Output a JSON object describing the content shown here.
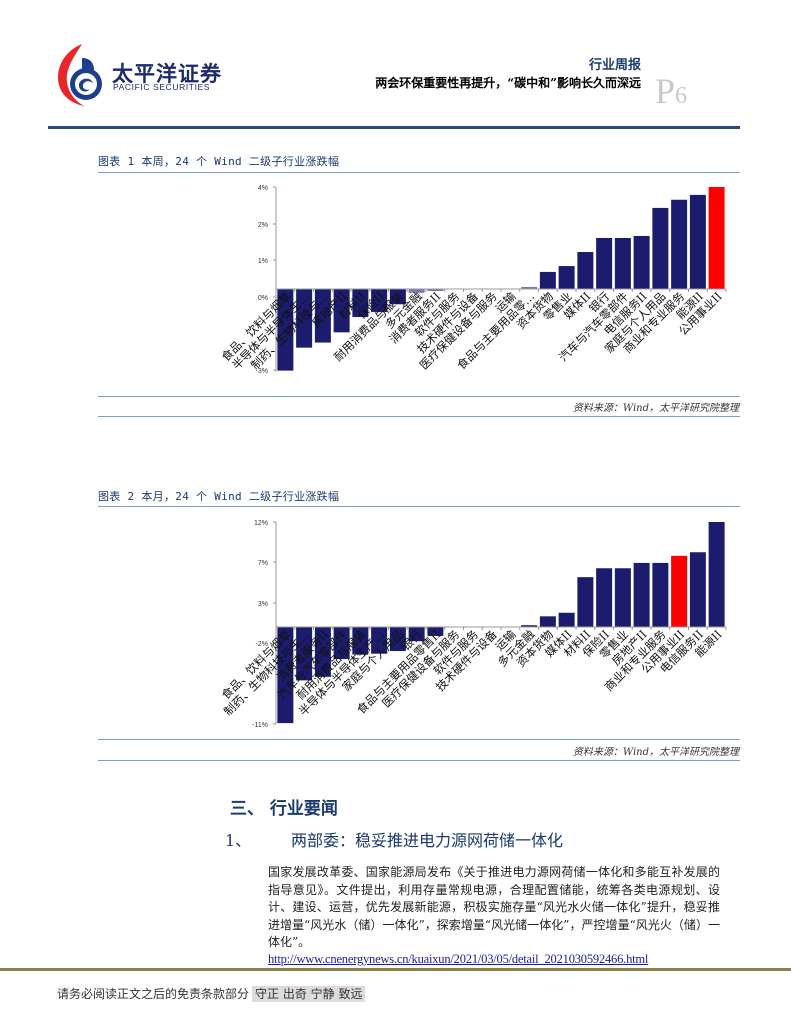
{
  "header": {
    "logo_cn": "太平洋证券",
    "logo_en": "PACIFIC SECURITIES",
    "report_type": "行业周报",
    "report_title": "两会环保重要性再提升，“碳中和”影响长久而深远",
    "page_prefix": "P",
    "page_number": "6"
  },
  "figures": [
    {
      "title": "图表 1 本周，24 个 Wind 二级子行业涨跌幅",
      "source": "资料来源：Wind，太平洋研究院整理"
    },
    {
      "title": "图表 2 本月，24 个 Wind 二级子行业涨跌幅",
      "source": "资料来源：Wind，太平洋研究院整理"
    }
  ],
  "chart_data": [
    {
      "type": "bar",
      "title": "图表 1 本周，24 个 Wind 二级子行业涨跌幅",
      "xlabel": "",
      "ylabel": "",
      "ytick_labels": [
        "4%",
        "2%",
        "1%",
        "0%",
        "-3%"
      ],
      "ylim": [
        -3.3,
        4.0
      ],
      "grid": false,
      "highlight_color": "#ff0000",
      "bar_color": "#1c1c6e",
      "highlight_index": 23,
      "categories": [
        "食品、饮料与烟草",
        "半导体与半导体生…",
        "制药、生物科技与…",
        "房地产II",
        "材料II",
        "保险II",
        "耐用消费品与服装",
        "多元金融",
        "消费者服务II",
        "软件与服务",
        "技术硬件与设备",
        "医疗保健设备与服务",
        "运输",
        "食品与主要用品零…",
        "资本货物",
        "零售业",
        "媒体II",
        "银行",
        "汽车与汽车零部件",
        "电信服务II",
        "家庭与个人用品",
        "商业和专业服务",
        "能源II",
        "公用事业II"
      ],
      "values": [
        -3.2,
        -2.3,
        -2.1,
        -1.7,
        -1.1,
        -0.9,
        -0.6,
        -0.15,
        -0.08,
        0.0,
        0.0,
        0.0,
        0.0,
        0.08,
        0.67,
        0.9,
        1.45,
        2.0,
        2.0,
        2.08,
        3.18,
        3.5,
        3.69,
        4.0
      ]
    },
    {
      "type": "bar",
      "title": "图表 2 本月，24 个 Wind 二级子行业涨跌幅",
      "xlabel": "",
      "ylabel": "",
      "ytick_labels": [
        "12%",
        "7%",
        "3%",
        "-2%",
        "-11%"
      ],
      "ylim": [
        -11,
        12
      ],
      "grid": false,
      "highlight_color": "#ff0000",
      "bar_color": "#1c1c6e",
      "highlight_index": 21,
      "categories": [
        "食品、饮料与烟草",
        "制药、生物科技与生…",
        "消费者服务II",
        "汽车与汽车零部件",
        "耐用消费品与服装",
        "半导体与半导体生产…",
        "家庭与个人用品",
        "银行",
        "食品与主要用品零售II",
        "医疗保健设备与服务",
        "软件与服务",
        "技术硬件与设备",
        "运输",
        "多元金融",
        "资本货物",
        "媒体II",
        "材料II",
        "保险II",
        "零售业",
        "房地产II",
        "商业和专业服务",
        "公用事业II",
        "电信服务II",
        "能源II"
      ],
      "values": [
        -10.8,
        -6.0,
        -5.6,
        -3.6,
        -3.1,
        -3.0,
        -2.7,
        -1.6,
        -1.0,
        0.0,
        0.0,
        0.0,
        0.0,
        0.2,
        1.2,
        1.6,
        5.6,
        6.6,
        6.6,
        7.2,
        7.2,
        8.0,
        8.4,
        11.8
      ]
    }
  ],
  "section": {
    "heading": "三、 行业要闻",
    "item_number": "1、",
    "item_title": "两部委：稳妥推进电力源网荷储一体化",
    "paragraph": "国家发展改革委、国家能源局发布《关于推进电力源网荷储一体化和多能互补发展的指导意见》。文件提出，利用存量常规电源，合理配置储能，统筹各类电源规划、设计、建设、运营，优先发展新能源，积极实施存量“风光水火储一体化”提升，稳妥推进增量“风光水（储）一体化”，探索增量“风光储一体化”，严控增量“风光火（储）一体化”。",
    "link": "http://www.cnenergynews.cn/kuaixun/2021/03/05/detail_2021030592466.html"
  },
  "footer": {
    "disclaimer": "请务必阅读正文之后的免责条款部分",
    "motto": "守正 出奇 宁静 致远"
  }
}
